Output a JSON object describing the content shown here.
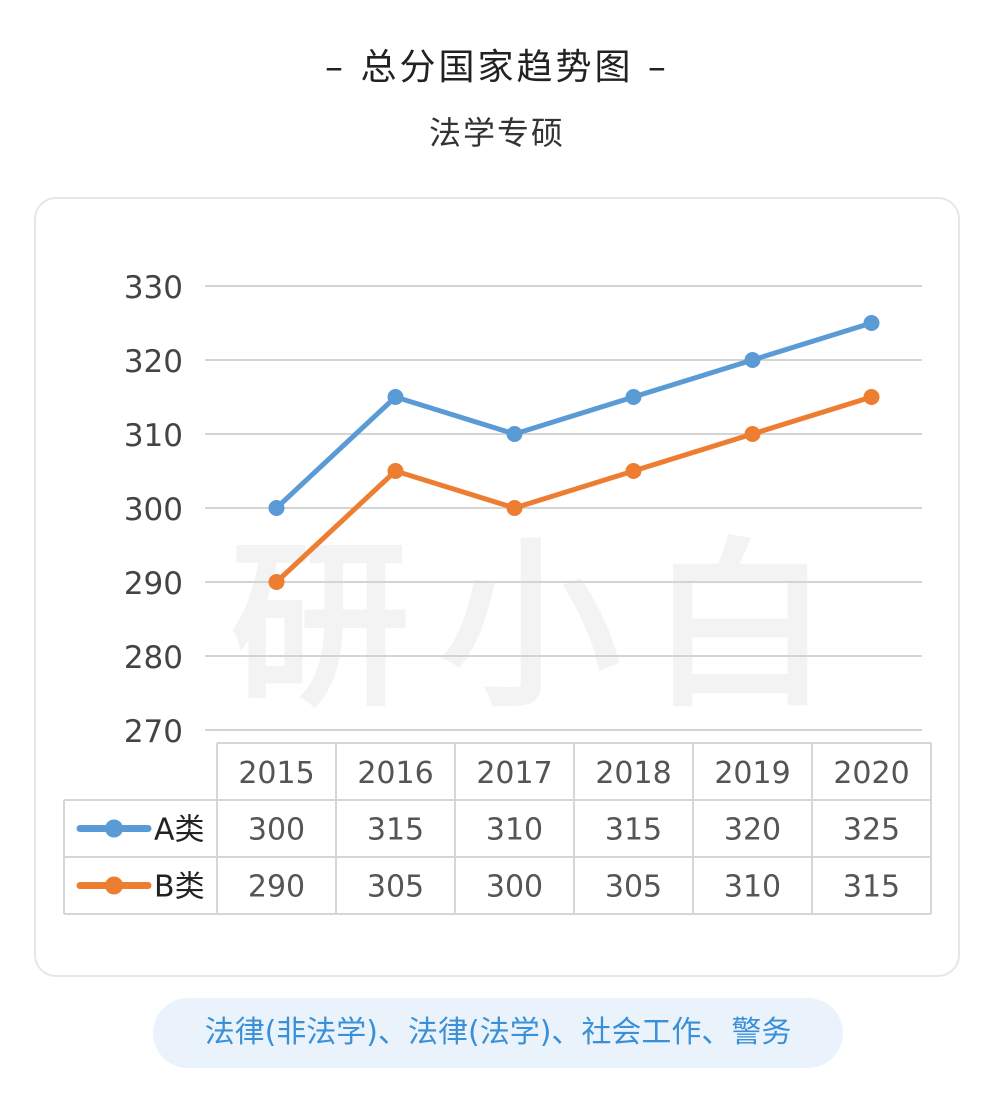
{
  "header": {
    "title": "– 总分国家趋势图 –",
    "subtitle": "法学专硕"
  },
  "watermark": "研小白",
  "footer": {
    "text": "法律(非法学)、法律(法学)、社会工作、警务"
  },
  "chart_data": {
    "type": "line",
    "title": "",
    "categories": [
      "2015",
      "2016",
      "2017",
      "2018",
      "2019",
      "2020"
    ],
    "series": [
      {
        "name": "A类",
        "values": [
          300,
          315,
          310,
          315,
          320,
          325
        ],
        "color": "#5b9bd5"
      },
      {
        "name": "B类",
        "values": [
          290,
          305,
          300,
          305,
          310,
          315
        ],
        "color": "#ed7d31"
      }
    ],
    "yticks": [
      270,
      280,
      290,
      300,
      310,
      320,
      330
    ],
    "ylim": [
      270,
      330
    ],
    "grid": true,
    "data_table": true
  }
}
